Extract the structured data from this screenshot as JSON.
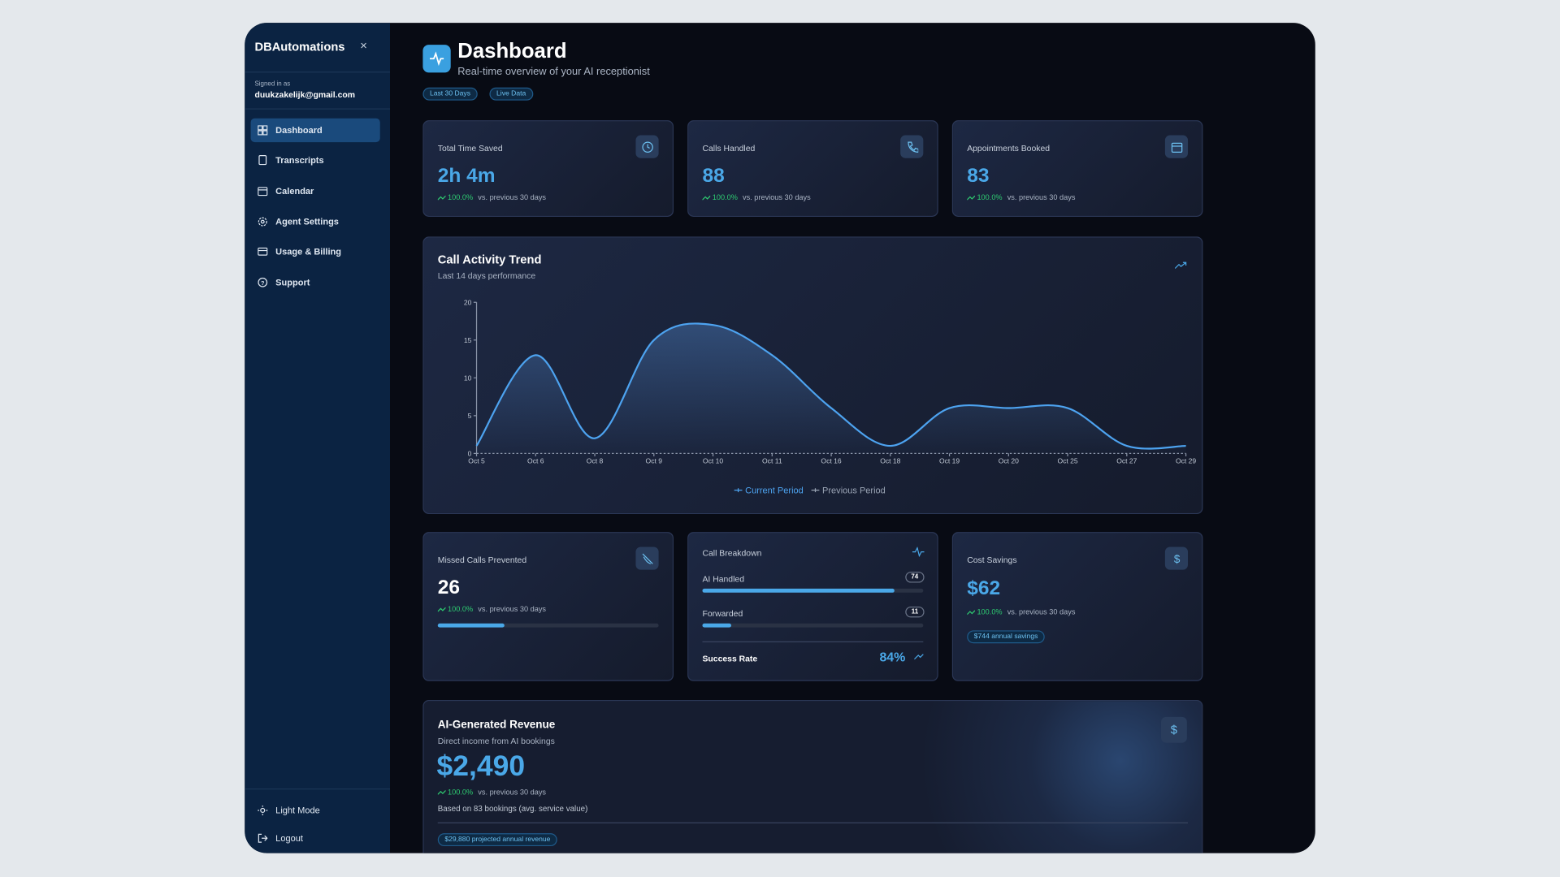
{
  "sidebar": {
    "brand": "DBAutomations",
    "close": "×",
    "signed_in_label": "Signed in as",
    "email": "duukzakelijk@gmail.com",
    "nav": [
      "Dashboard",
      "Transcripts",
      "Calendar",
      "Agent Settings",
      "Usage & Billing",
      "Support"
    ],
    "footer": [
      "Light Mode",
      "Logout"
    ]
  },
  "header": {
    "title": "Dashboard",
    "subtitle": "Real-time overview of your AI receptionist",
    "badges": [
      "Last 30 Days",
      "Live Data"
    ]
  },
  "stats": [
    {
      "label": "Total Time Saved",
      "value": "2h 4m",
      "change": "100.0%",
      "note": "vs. previous 30 days"
    },
    {
      "label": "Calls Handled",
      "value": "88",
      "change": "100.0%",
      "note": "vs. previous 30 days"
    },
    {
      "label": "Appointments Booked",
      "value": "83",
      "change": "100.0%",
      "note": "vs. previous 30 days"
    }
  ],
  "trend_chart": {
    "type": "area",
    "title": "Call Activity Trend",
    "subtitle": "Last 14 days performance",
    "categories": [
      "Oct 5",
      "Oct 6",
      "Oct 8",
      "Oct 9",
      "Oct 10",
      "Oct 11",
      "Oct 16",
      "Oct 18",
      "Oct 19",
      "Oct 20",
      "Oct 25",
      "Oct 27",
      "Oct 29"
    ],
    "series": [
      {
        "name": "Current Period",
        "color": "#4da3f0",
        "values": [
          1,
          13,
          2,
          15,
          17,
          13,
          6,
          1,
          6,
          6,
          6,
          1,
          1
        ]
      },
      {
        "name": "Previous Period",
        "color": "#9aa4b4",
        "values": [
          null,
          null,
          null,
          null,
          null,
          null,
          null,
          null,
          null,
          null,
          null,
          null,
          null
        ]
      }
    ],
    "ylim": [
      0,
      20
    ],
    "yticks": [
      0,
      5,
      10,
      15,
      20
    ]
  },
  "missed_calls": {
    "label": "Missed Calls Prevented",
    "value": "26",
    "change": "100.0%",
    "note": "vs. previous 30 days",
    "progress": 30
  },
  "call_breakdown": {
    "title": "Call Breakdown",
    "rows": [
      {
        "label": "AI Handled",
        "value": 74
      },
      {
        "label": "Forwarded",
        "value": 11
      }
    ],
    "success_label": "Success Rate",
    "success_rate": "84%"
  },
  "cost_savings": {
    "label": "Cost Savings",
    "value": "$62",
    "change": "100.0%",
    "note": "vs. previous 30 days",
    "badge": "$744 annual savings"
  },
  "revenue": {
    "title": "AI-Generated Revenue",
    "subtitle": "Direct income from AI bookings",
    "value": "$2,490",
    "change": "100.0%",
    "note": "vs. previous 30 days",
    "basis": "Based on 83 bookings (avg. service value)",
    "badge": "$29,880 projected annual revenue"
  }
}
